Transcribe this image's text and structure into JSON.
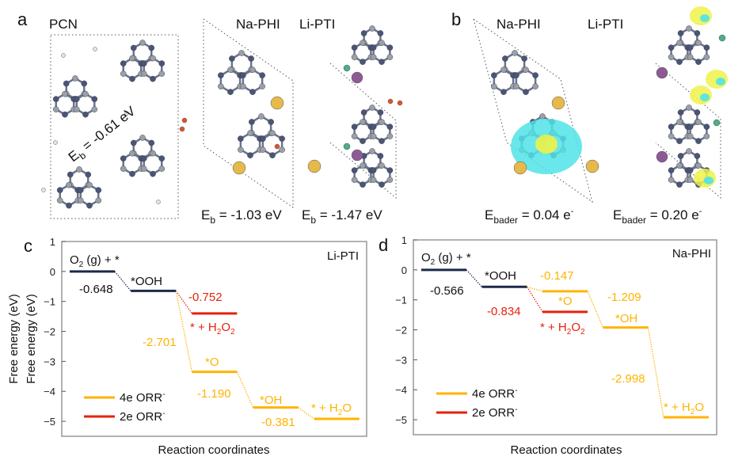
{
  "colors": {
    "dark": "#1b2a4a",
    "orange": "#ffb300",
    "red": "#e8200c",
    "axis": "#888888",
    "N": "#4a5578",
    "C": "#9aa0aa",
    "H": "#e6e6e6",
    "O": "#e0532a",
    "Na": "#e5b94a",
    "Li": "#8e5a94",
    "Cl": "#4caf85",
    "cyan": "#4fe3e6",
    "yellow": "#eef24a"
  },
  "panel_a": {
    "letter": "a",
    "titles": [
      "PCN",
      "Na-PHI",
      "Li-PTI"
    ],
    "eb": [
      {
        "pre": "E",
        "sub": "b",
        "post": " = -0.61 eV"
      },
      {
        "pre": "E",
        "sub": "b",
        "post": " = -1.03 eV"
      },
      {
        "pre": "E",
        "sub": "b",
        "post": " = -1.47 eV"
      }
    ]
  },
  "panel_b": {
    "letter": "b",
    "titles": [
      "Na-PHI",
      "Li-PTI"
    ],
    "bader": [
      {
        "pre": "E",
        "sub": "bader",
        "post": " = 0.04 e",
        "sup": "-"
      },
      {
        "pre": "E",
        "sub": "bader",
        "post": " = 0.20 e",
        "sup": "-"
      }
    ]
  },
  "chart_data": [
    {
      "type": "line",
      "panel": "c",
      "annotation": "Li-PTI",
      "xlabel": "Reaction coordinates",
      "ylabel": "Free energy (eV)",
      "ylim": [
        -5.5,
        1
      ],
      "yticks": [
        "1",
        "0",
        "−1",
        "−2",
        "−3",
        "−4",
        "−5"
      ],
      "grid": false,
      "legend": {
        "position": "bottom-left",
        "entries": [
          {
            "pre": "4e",
            "sup": "-",
            "post": " ORR",
            "color": "#ffb300"
          },
          {
            "pre": "2e",
            "sup": "-",
            "post": " ORR",
            "color": "#e8200c"
          }
        ]
      },
      "levels": [
        {
          "state": {
            "pre": "O",
            "sub": "2",
            "post": " (g) + *"
          },
          "step": 0,
          "value": 0,
          "path": "common"
        },
        {
          "state": {
            "pre": "*OOH",
            "sub": "",
            "post": ""
          },
          "step": 1,
          "value": -0.648,
          "path": "common"
        },
        {
          "state": {
            "pre": "* + H",
            "sub": "2",
            "post": "O",
            "sub2": "2"
          },
          "step": 2,
          "value": -1.4,
          "path": "2e"
        },
        {
          "state": {
            "pre": "*O",
            "sub": "",
            "post": ""
          },
          "step": 2,
          "value": -3.349,
          "path": "4e"
        },
        {
          "state": {
            "pre": "*OH",
            "sub": "",
            "post": ""
          },
          "step": 3,
          "value": -4.539,
          "path": "4e"
        },
        {
          "state": {
            "pre": "* + H",
            "sub": "2",
            "post": "O"
          },
          "step": 4,
          "value": -4.92,
          "path": "4e"
        }
      ],
      "steps": [
        "-0.648",
        "-0.752",
        "-2.701",
        "-1.190",
        "-0.381"
      ]
    },
    {
      "type": "line",
      "panel": "d",
      "annotation": "Na-PHI",
      "xlabel": "Reaction coordinates",
      "ylabel": "Free energy (eV)",
      "ylim": [
        -5.5,
        1
      ],
      "yticks": [
        "1",
        "0",
        "−1",
        "−2",
        "−3",
        "−4",
        "−5"
      ],
      "grid": false,
      "legend": {
        "position": "bottom-left",
        "entries": [
          {
            "pre": "4e",
            "sup": "-",
            "post": " ORR",
            "color": "#ffb300"
          },
          {
            "pre": "2e",
            "sup": "-",
            "post": " ORR",
            "color": "#e8200c"
          }
        ]
      },
      "levels": [
        {
          "state": {
            "pre": "O",
            "sub": "2",
            "post": " (g) + *"
          },
          "step": 0,
          "value": 0,
          "path": "common"
        },
        {
          "state": {
            "pre": "*OOH",
            "sub": "",
            "post": ""
          },
          "step": 1,
          "value": -0.566,
          "path": "common"
        },
        {
          "state": {
            "pre": "*O",
            "sub": "",
            "post": ""
          },
          "step": 2,
          "value": -0.713,
          "path": "4e"
        },
        {
          "state": {
            "pre": "* + H",
            "sub": "2",
            "post": "O",
            "sub2": "2"
          },
          "step": 2,
          "value": -1.4,
          "path": "2e"
        },
        {
          "state": {
            "pre": "*OH",
            "sub": "",
            "post": ""
          },
          "step": 3,
          "value": -1.922,
          "path": "4e"
        },
        {
          "state": {
            "pre": "* + H",
            "sub": "2",
            "post": "O"
          },
          "step": 4,
          "value": -4.92,
          "path": "4e"
        }
      ],
      "steps": [
        "-0.566",
        "-0.147",
        "-0.834",
        "-1.209",
        "-2.998"
      ]
    }
  ]
}
